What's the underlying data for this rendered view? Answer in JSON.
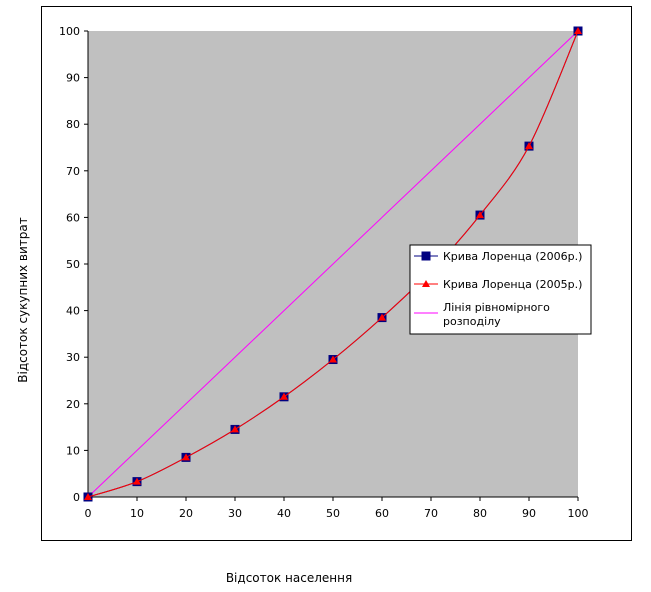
{
  "chart_data": {
    "type": "line",
    "xlabel": "Відсоток населення",
    "ylabel": "Відсоток сукупних витрат",
    "xlim": [
      0,
      100
    ],
    "ylim": [
      0,
      100
    ],
    "xticks": [
      "0",
      "10",
      "20",
      "30",
      "40",
      "50",
      "60",
      "70",
      "80",
      "90",
      "100"
    ],
    "yticks": [
      "0",
      "10",
      "20",
      "30",
      "40",
      "50",
      "60",
      "70",
      "80",
      "90",
      "100"
    ],
    "grid": false,
    "plot_background": "#c0c0c0",
    "legend_position": "right",
    "series": [
      {
        "name": "Крива Лоренца (2006р.)",
        "color": "#000080",
        "marker": "square",
        "x": [
          0,
          10,
          20,
          30,
          40,
          50,
          60,
          70,
          80,
          90,
          100
        ],
        "y": [
          0,
          3.3,
          8.5,
          14.5,
          21.5,
          29.5,
          38.5,
          48.5,
          60.5,
          75.3,
          100
        ]
      },
      {
        "name": "Крива Лоренца (2005р.)",
        "color": "#ff0000",
        "marker": "triangle",
        "x": [
          0,
          10,
          20,
          30,
          40,
          50,
          60,
          70,
          80,
          90,
          100
        ],
        "y": [
          0,
          3.3,
          8.5,
          14.5,
          21.5,
          29.5,
          38.5,
          48.5,
          60.5,
          75.3,
          100
        ]
      },
      {
        "name": "Лінія рівномірного розподілу",
        "name_lines": [
          "Лінія рівномірного",
          "розподілу"
        ],
        "color": "#ff00ff",
        "marker": "none",
        "x": [
          0,
          100
        ],
        "y": [
          0,
          100
        ]
      }
    ]
  }
}
